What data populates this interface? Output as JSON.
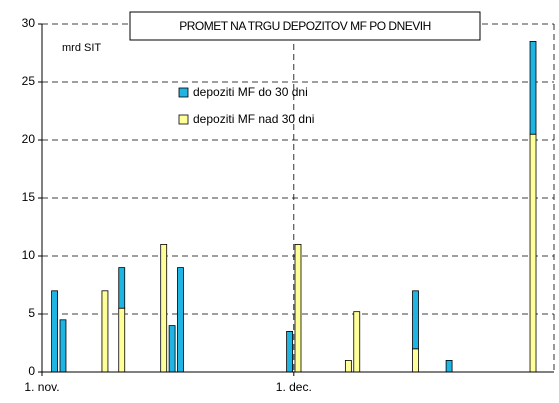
{
  "chart_data": {
    "type": "stacked_bar",
    "title": "PROMET NA TRGU DEPOZITOV MF PO DNEVIH",
    "y_label": "mrd SIT",
    "categories": [
      "1. nov.",
      null,
      null,
      null,
      null,
      null,
      null,
      null,
      null,
      null,
      null,
      null,
      null,
      null,
      null,
      null,
      null,
      null,
      null,
      null,
      null,
      null,
      null,
      null,
      null,
      null,
      null,
      null,
      null,
      null,
      "1. dec.",
      null,
      null,
      null,
      null,
      null,
      null,
      null,
      null,
      null,
      null,
      null,
      null,
      null,
      null,
      null,
      null,
      null,
      null,
      null,
      null,
      null,
      null,
      null,
      null,
      null,
      null,
      null,
      null,
      null,
      null
    ],
    "series": [
      {
        "name": "depoziti MF do 30 dni",
        "color": "#1fb4e2",
        "values": [
          null,
          7,
          4.5,
          null,
          null,
          null,
          null,
          null,
          null,
          3.5,
          null,
          null,
          null,
          null,
          null,
          4,
          9,
          null,
          null,
          null,
          null,
          null,
          null,
          null,
          null,
          null,
          null,
          null,
          null,
          3.5,
          null,
          null,
          null,
          null,
          null,
          null,
          null,
          null,
          null,
          null,
          null,
          null,
          null,
          null,
          5,
          null,
          null,
          null,
          1,
          null,
          null,
          null,
          null,
          null,
          null,
          null,
          null,
          null,
          8,
          null,
          null
        ]
      },
      {
        "name": "depoziti MF nad 30 dni",
        "color": "#ffff99",
        "values": [
          null,
          null,
          null,
          null,
          null,
          null,
          null,
          7,
          null,
          5.5,
          null,
          null,
          null,
          null,
          11,
          null,
          null,
          null,
          null,
          null,
          null,
          null,
          null,
          null,
          null,
          null,
          null,
          null,
          null,
          null,
          11,
          null,
          null,
          null,
          null,
          null,
          1,
          5.2,
          null,
          null,
          null,
          null,
          null,
          null,
          2,
          null,
          null,
          null,
          null,
          null,
          null,
          null,
          null,
          null,
          null,
          null,
          null,
          null,
          20.5,
          null,
          null
        ]
      }
    ],
    "ylim": [
      0,
      30
    ],
    "yticks": [
      0,
      5,
      10,
      15,
      20,
      25,
      30
    ],
    "grid": true
  }
}
